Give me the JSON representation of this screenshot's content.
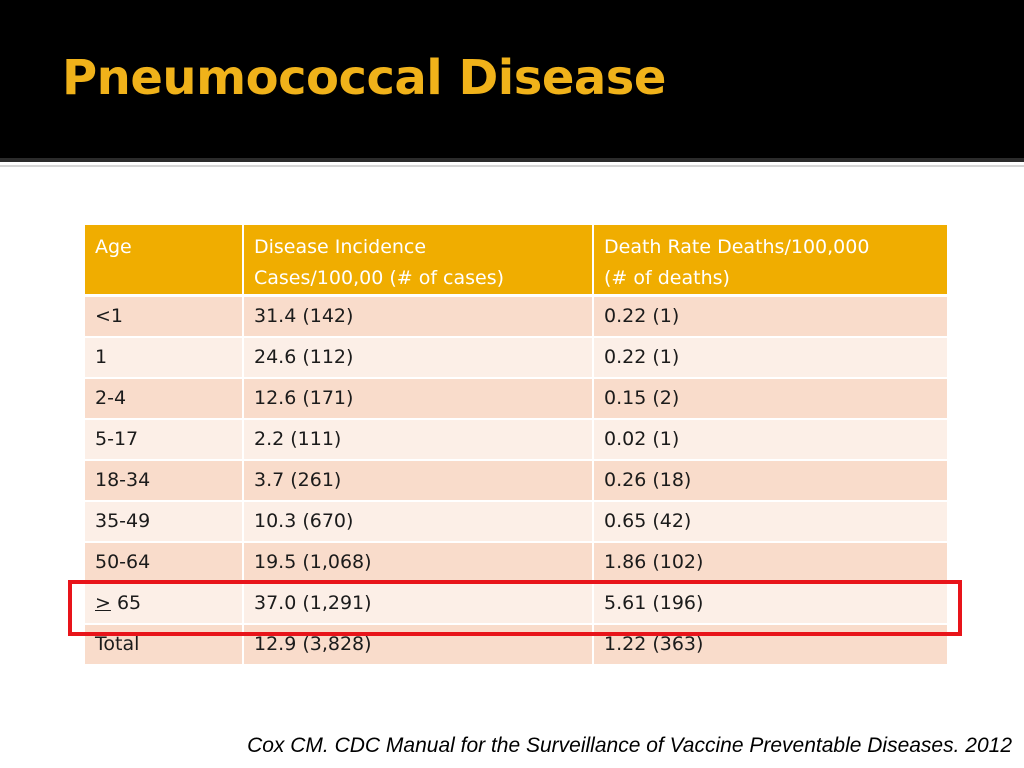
{
  "slide": {
    "title": "Pneumococcal Disease",
    "accent_color": "#f0b21a",
    "header_fill_color": "#f0ad00",
    "row_colors": [
      "#f9dccb",
      "#fcefe7"
    ],
    "highlight_color": "#e8141a"
  },
  "table": {
    "headers": [
      {
        "line1": "Age",
        "line2": ""
      },
      {
        "line1": "Disease Incidence",
        "line2": "Cases/100,00 (# of cases)"
      },
      {
        "line1": "Death Rate  Deaths/100,000",
        "line2": "(# of deaths)"
      }
    ],
    "rows": [
      {
        "age_symbol": "",
        "age": "<1",
        "incidence": "31.4 (142)",
        "death_rate": "0.22 (1)"
      },
      {
        "age_symbol": "",
        "age": "1",
        "incidence": "24.6 (112)",
        "death_rate": "0.22 (1)"
      },
      {
        "age_symbol": "",
        "age": "2-4",
        "incidence": "12.6 (171)",
        "death_rate": "0.15 (2)"
      },
      {
        "age_symbol": "",
        "age": "5-17",
        "incidence": "2.2 (111)",
        "death_rate": "0.02 (1)"
      },
      {
        "age_symbol": "",
        "age": "18-34",
        "incidence": "3.7 (261)",
        "death_rate": "0.26 (18)"
      },
      {
        "age_symbol": "",
        "age": "35-49",
        "incidence": "10.3 (670)",
        "death_rate": "0.65 (42)"
      },
      {
        "age_symbol": "",
        "age": "50-64",
        "incidence": "19.5 (1,068)",
        "death_rate": "1.86 (102)"
      },
      {
        "age_symbol": ">",
        "age": " 65",
        "incidence": "37.0 (1,291)",
        "death_rate": "5.61 (196)"
      },
      {
        "age_symbol": "",
        "age": "Total",
        "incidence": "12.9 (3,828)",
        "death_rate": "1.22 (363)"
      }
    ],
    "highlighted_row_index": 7
  },
  "citation": "Cox CM. CDC Manual for the Surveillance of Vaccine Preventable Diseases. 2012"
}
